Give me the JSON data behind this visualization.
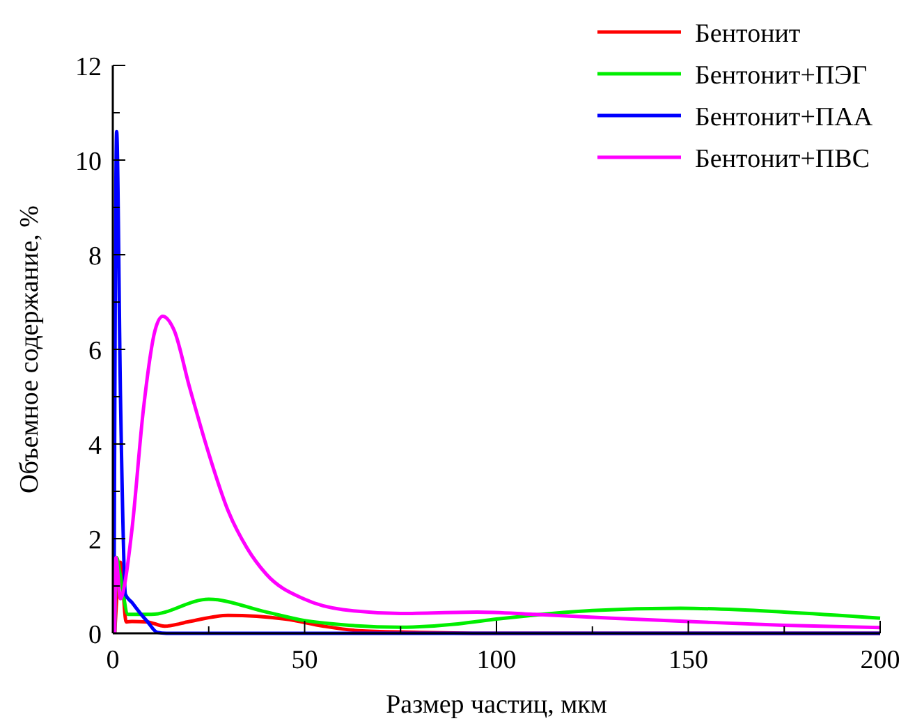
{
  "chart_data": {
    "type": "line",
    "xlabel": "Размер частиц, мкм",
    "ylabel": "Объемное содержание, %",
    "xlim": [
      0,
      200
    ],
    "ylim": [
      0,
      12
    ],
    "xticks": [
      0,
      {
        "value": 25,
        "label": null
      },
      50,
      {
        "value": 75,
        "label": null
      },
      100,
      {
        "value": 125,
        "label": null
      },
      150,
      {
        "value": 175,
        "label": null
      },
      200
    ],
    "yticks": [
      0,
      {
        "value": 1,
        "label": null
      },
      2,
      {
        "value": 3,
        "label": null
      },
      4,
      {
        "value": 5,
        "label": null
      },
      6,
      {
        "value": 7,
        "label": null
      },
      8,
      {
        "value": 9,
        "label": null
      },
      10,
      {
        "value": 11,
        "label": null
      },
      12
    ],
    "legend": "top right",
    "grid": false,
    "marker": "none",
    "line_style": "solid",
    "series": [
      {
        "name": "Бентонит",
        "color": "#ff0000",
        "x": [
          0.5,
          1,
          2,
          3.5,
          5,
          9,
          13.5,
          20,
          30,
          45,
          55,
          65,
          80,
          100,
          200
        ],
        "values": [
          0,
          null,
          1.5,
          0.24,
          0.25,
          0.24,
          0.15,
          0.25,
          0.38,
          0.3,
          0.15,
          0.05,
          0.02,
          0,
          0
        ]
      },
      {
        "name": "Бентонит+ПЭГ",
        "color": "#00ee00",
        "x": [
          0.5,
          1,
          2,
          4,
          10,
          25,
          40,
          50,
          60,
          75,
          90,
          100,
          125,
          148,
          175,
          200
        ],
        "values": [
          0,
          1.6,
          1.2,
          0.4,
          0.4,
          0.72,
          0.45,
          0.27,
          0.18,
          0.13,
          0.2,
          0.3,
          0.48,
          0.53,
          0.45,
          0.32
        ]
      },
      {
        "name": "Бентонит+ПАА",
        "color": "#0000ff",
        "x": [
          0.3,
          1,
          2,
          3.3,
          5,
          7,
          9,
          11.6,
          14,
          200
        ],
        "values": [
          0,
          10.6,
          5,
          0.82,
          0.65,
          0.44,
          0.25,
          0.02,
          0,
          0
        ]
      },
      {
        "name": "Бентонит+ПВС",
        "color": "#ff00ff",
        "x": [
          0.5,
          0.8,
          2,
          3,
          5,
          8,
          11,
          13,
          16,
          20,
          25,
          30,
          35,
          40,
          50,
          60,
          75,
          95,
          110,
          130,
          150,
          175,
          200
        ],
        "values": [
          0,
          1.6,
          0.73,
          1,
          2.2,
          4.75,
          6.4,
          6.7,
          6.4,
          5.2,
          3.8,
          2.6,
          1.8,
          1.25,
          0.72,
          0.5,
          0.42,
          0.45,
          0.4,
          0.32,
          0.25,
          0.17,
          0.12
        ]
      }
    ]
  }
}
